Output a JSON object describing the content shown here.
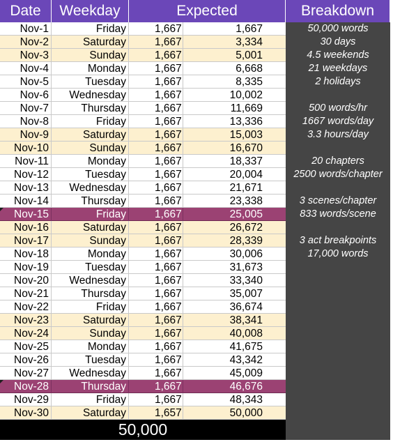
{
  "headers": {
    "date": "Date",
    "weekday": "Weekday",
    "expected": "Expected",
    "breakdown": "Breakdown"
  },
  "rows": [
    {
      "date": "Nov-1",
      "day": "Friday",
      "inc": "1,667",
      "tot": "1,667",
      "type": "normal"
    },
    {
      "date": "Nov-2",
      "day": "Saturday",
      "inc": "1,667",
      "tot": "3,334",
      "type": "weekend"
    },
    {
      "date": "Nov-3",
      "day": "Sunday",
      "inc": "1,667",
      "tot": "5,001",
      "type": "weekend"
    },
    {
      "date": "Nov-4",
      "day": "Monday",
      "inc": "1,667",
      "tot": "6,668",
      "type": "normal"
    },
    {
      "date": "Nov-5",
      "day": "Tuesday",
      "inc": "1,667",
      "tot": "8,335",
      "type": "normal"
    },
    {
      "date": "Nov-6",
      "day": "Wednesday",
      "inc": "1,667",
      "tot": "10,002",
      "type": "normal"
    },
    {
      "date": "Nov-7",
      "day": "Thursday",
      "inc": "1,667",
      "tot": "11,669",
      "type": "normal"
    },
    {
      "date": "Nov-8",
      "day": "Friday",
      "inc": "1,667",
      "tot": "13,336",
      "type": "normal"
    },
    {
      "date": "Nov-9",
      "day": "Saturday",
      "inc": "1,667",
      "tot": "15,003",
      "type": "weekend"
    },
    {
      "date": "Nov-10",
      "day": "Sunday",
      "inc": "1,667",
      "tot": "16,670",
      "type": "weekend"
    },
    {
      "date": "Nov-11",
      "day": "Monday",
      "inc": "1,667",
      "tot": "18,337",
      "type": "normal"
    },
    {
      "date": "Nov-12",
      "day": "Tuesday",
      "inc": "1,667",
      "tot": "20,004",
      "type": "normal"
    },
    {
      "date": "Nov-13",
      "day": "Wednesday",
      "inc": "1,667",
      "tot": "21,671",
      "type": "normal"
    },
    {
      "date": "Nov-14",
      "day": "Thursday",
      "inc": "1,667",
      "tot": "23,338",
      "type": "normal"
    },
    {
      "date": "Nov-15",
      "day": "Friday",
      "inc": "1,667",
      "tot": "25,005",
      "type": "milestone"
    },
    {
      "date": "Nov-16",
      "day": "Saturday",
      "inc": "1,667",
      "tot": "26,672",
      "type": "weekend"
    },
    {
      "date": "Nov-17",
      "day": "Sunday",
      "inc": "1,667",
      "tot": "28,339",
      "type": "weekend"
    },
    {
      "date": "Nov-18",
      "day": "Monday",
      "inc": "1,667",
      "tot": "30,006",
      "type": "normal"
    },
    {
      "date": "Nov-19",
      "day": "Tuesday",
      "inc": "1,667",
      "tot": "31,673",
      "type": "normal"
    },
    {
      "date": "Nov-20",
      "day": "Wednesday",
      "inc": "1,667",
      "tot": "33,340",
      "type": "normal"
    },
    {
      "date": "Nov-21",
      "day": "Thursday",
      "inc": "1,667",
      "tot": "35,007",
      "type": "normal"
    },
    {
      "date": "Nov-22",
      "day": "Friday",
      "inc": "1,667",
      "tot": "36,674",
      "type": "normal"
    },
    {
      "date": "Nov-23",
      "day": "Saturday",
      "inc": "1,667",
      "tot": "38,341",
      "type": "weekend"
    },
    {
      "date": "Nov-24",
      "day": "Sunday",
      "inc": "1,667",
      "tot": "40,008",
      "type": "weekend"
    },
    {
      "date": "Nov-25",
      "day": "Monday",
      "inc": "1,667",
      "tot": "41,675",
      "type": "normal"
    },
    {
      "date": "Nov-26",
      "day": "Tuesday",
      "inc": "1,667",
      "tot": "43,342",
      "type": "normal"
    },
    {
      "date": "Nov-27",
      "day": "Wednesday",
      "inc": "1,667",
      "tot": "45,009",
      "type": "normal"
    },
    {
      "date": "Nov-28",
      "day": "Thursday",
      "inc": "1,667",
      "tot": "46,676",
      "type": "milestone"
    },
    {
      "date": "Nov-29",
      "day": "Friday",
      "inc": "1,667",
      "tot": "48,343",
      "type": "normal"
    },
    {
      "date": "Nov-30",
      "day": "Saturday",
      "inc": "1,657",
      "tot": "50,000",
      "type": "weekend"
    }
  ],
  "breakdown": [
    "50,000 words",
    "30 days",
    "4.5 weekends",
    "21 weekdays",
    "2 holidays",
    "",
    "500 words/hr",
    "1667 words/day",
    "3.3 hours/day",
    "",
    "20 chapters",
    "2500 words/chapter",
    "",
    "3 scenes/chapter",
    "833 words/scene",
    "",
    "3 act breakpoints",
    "17,000 words"
  ],
  "total": "50,000",
  "colors": {
    "header": "#6b47b8",
    "weekend": "#fdf0cf",
    "milestone": "#9b4273",
    "breakdown_panel": "#454545",
    "total_bar": "#000000"
  }
}
